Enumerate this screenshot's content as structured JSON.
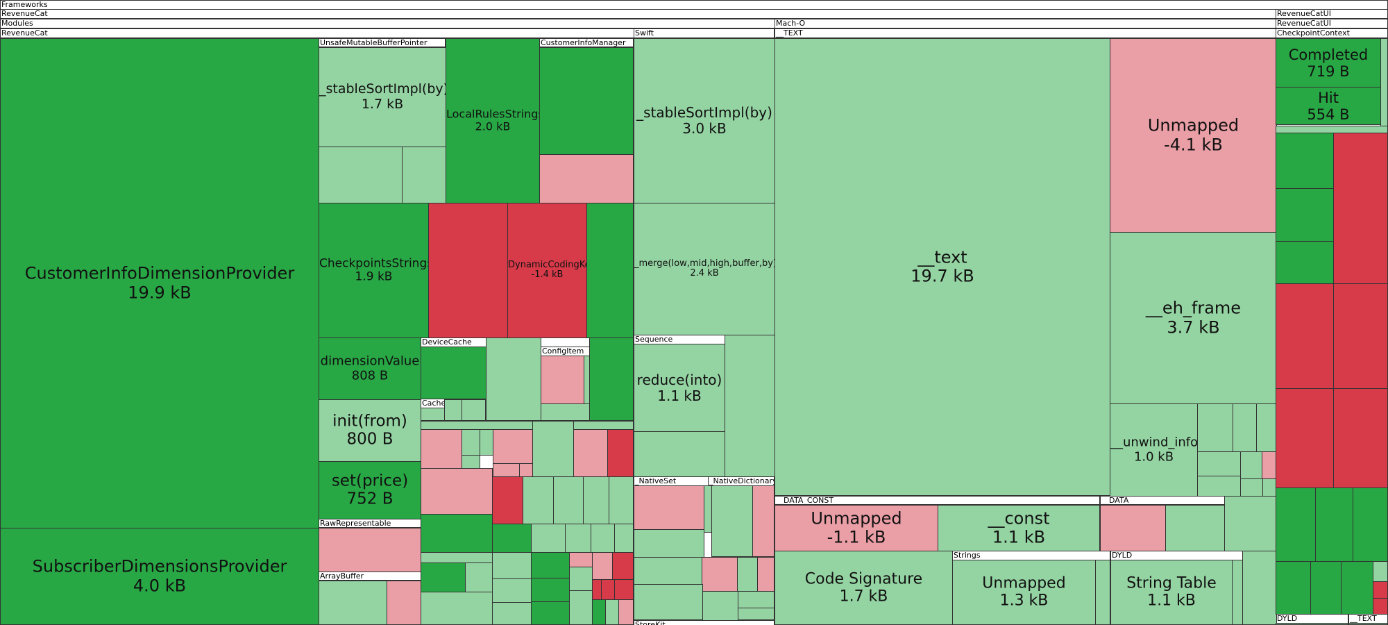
{
  "chart_data": {
    "type": "treemap",
    "colors": {
      "grow_strong": "#28a745",
      "grow_light": "#94d3a2",
      "shrink_strong": "#d73a49",
      "shrink_light": "#ea9ea6"
    },
    "path_headers": [
      "Frameworks",
      "RevenueCat",
      "Modules",
      "RevenueCat"
    ],
    "groups": [
      {
        "name": "UnsafeMutableBufferPointer"
      },
      {
        "name": "CustomerInfoManager"
      },
      {
        "name": "Swift"
      },
      {
        "name": "Mach-O"
      },
      {
        "name": "__TEXT"
      },
      {
        "name": "RevenueCatUI"
      },
      {
        "name": "RevenueCatUI"
      },
      {
        "name": "CheckpointContext"
      },
      {
        "name": "DeviceCache"
      },
      {
        "name": "ConfigItem"
      },
      {
        "name": "CacheKey"
      },
      {
        "name": "Sequence"
      },
      {
        "name": "_NativeSet"
      },
      {
        "name": "_NativeDictionary"
      },
      {
        "name": "__DATA_CONST"
      },
      {
        "name": "__DATA"
      },
      {
        "name": "Strings"
      },
      {
        "name": "DYLD"
      },
      {
        "name": "RawRepresentable"
      },
      {
        "name": "ArrayBuffer"
      },
      {
        "name": "StoreKit"
      },
      {
        "name": "DYLD"
      },
      {
        "name": "__TEXT"
      }
    ],
    "nodes": [
      {
        "name": "CustomerInfoDimensionProvider",
        "size": "19.9 kB",
        "value_kb": 19.9
      },
      {
        "name": "SubscriberDimensionsProvider",
        "size": "4.0 kB",
        "value_kb": 4.0
      },
      {
        "name": "_stableSortImpl(by)",
        "size": "1.7 kB",
        "value_kb": 1.7
      },
      {
        "name": "LocalRulesStrings",
        "size": "2.0 kB",
        "value_kb": 2.0
      },
      {
        "name": "CheckpointsStrings",
        "size": "1.9 kB",
        "value_kb": 1.9
      },
      {
        "name": "DynamicCodingKey",
        "size": "-1.4 kB",
        "value_kb": -1.4
      },
      {
        "name": "dimensionValue",
        "size": "808 B",
        "value_kb": 0.808
      },
      {
        "name": "init(from)",
        "size": "800 B",
        "value_kb": 0.8
      },
      {
        "name": "set(price)",
        "size": "752 B",
        "value_kb": 0.752
      },
      {
        "name": "_stableSortImpl(by)",
        "size": "3.0 kB",
        "value_kb": 3.0
      },
      {
        "name": "_merge(low,mid,high,buffer,by)",
        "size": "2.4 kB",
        "value_kb": 2.4
      },
      {
        "name": "reduce(into)",
        "size": "1.1 kB",
        "value_kb": 1.1
      },
      {
        "name": "__text",
        "size": "19.7 kB",
        "value_kb": 19.7
      },
      {
        "name": "Unmapped",
        "size": "-4.1 kB",
        "value_kb": -4.1
      },
      {
        "name": "__eh_frame",
        "size": "3.7 kB",
        "value_kb": 3.7
      },
      {
        "name": "__unwind_info",
        "size": "1.0 kB",
        "value_kb": 1.0
      },
      {
        "name": "Unmapped",
        "size": "-1.1 kB",
        "value_kb": -1.1
      },
      {
        "name": "__const",
        "size": "1.1 kB",
        "value_kb": 1.1
      },
      {
        "name": "Code Signature",
        "size": "1.7 kB",
        "value_kb": 1.7
      },
      {
        "name": "Unmapped",
        "size": "1.3 kB",
        "value_kb": 1.3
      },
      {
        "name": "String Table",
        "size": "1.1 kB",
        "value_kb": 1.1
      },
      {
        "name": "Completed",
        "size": "719 B",
        "value_kb": 0.719
      },
      {
        "name": "Hit",
        "size": "554 B",
        "value_kb": 0.554
      }
    ]
  }
}
